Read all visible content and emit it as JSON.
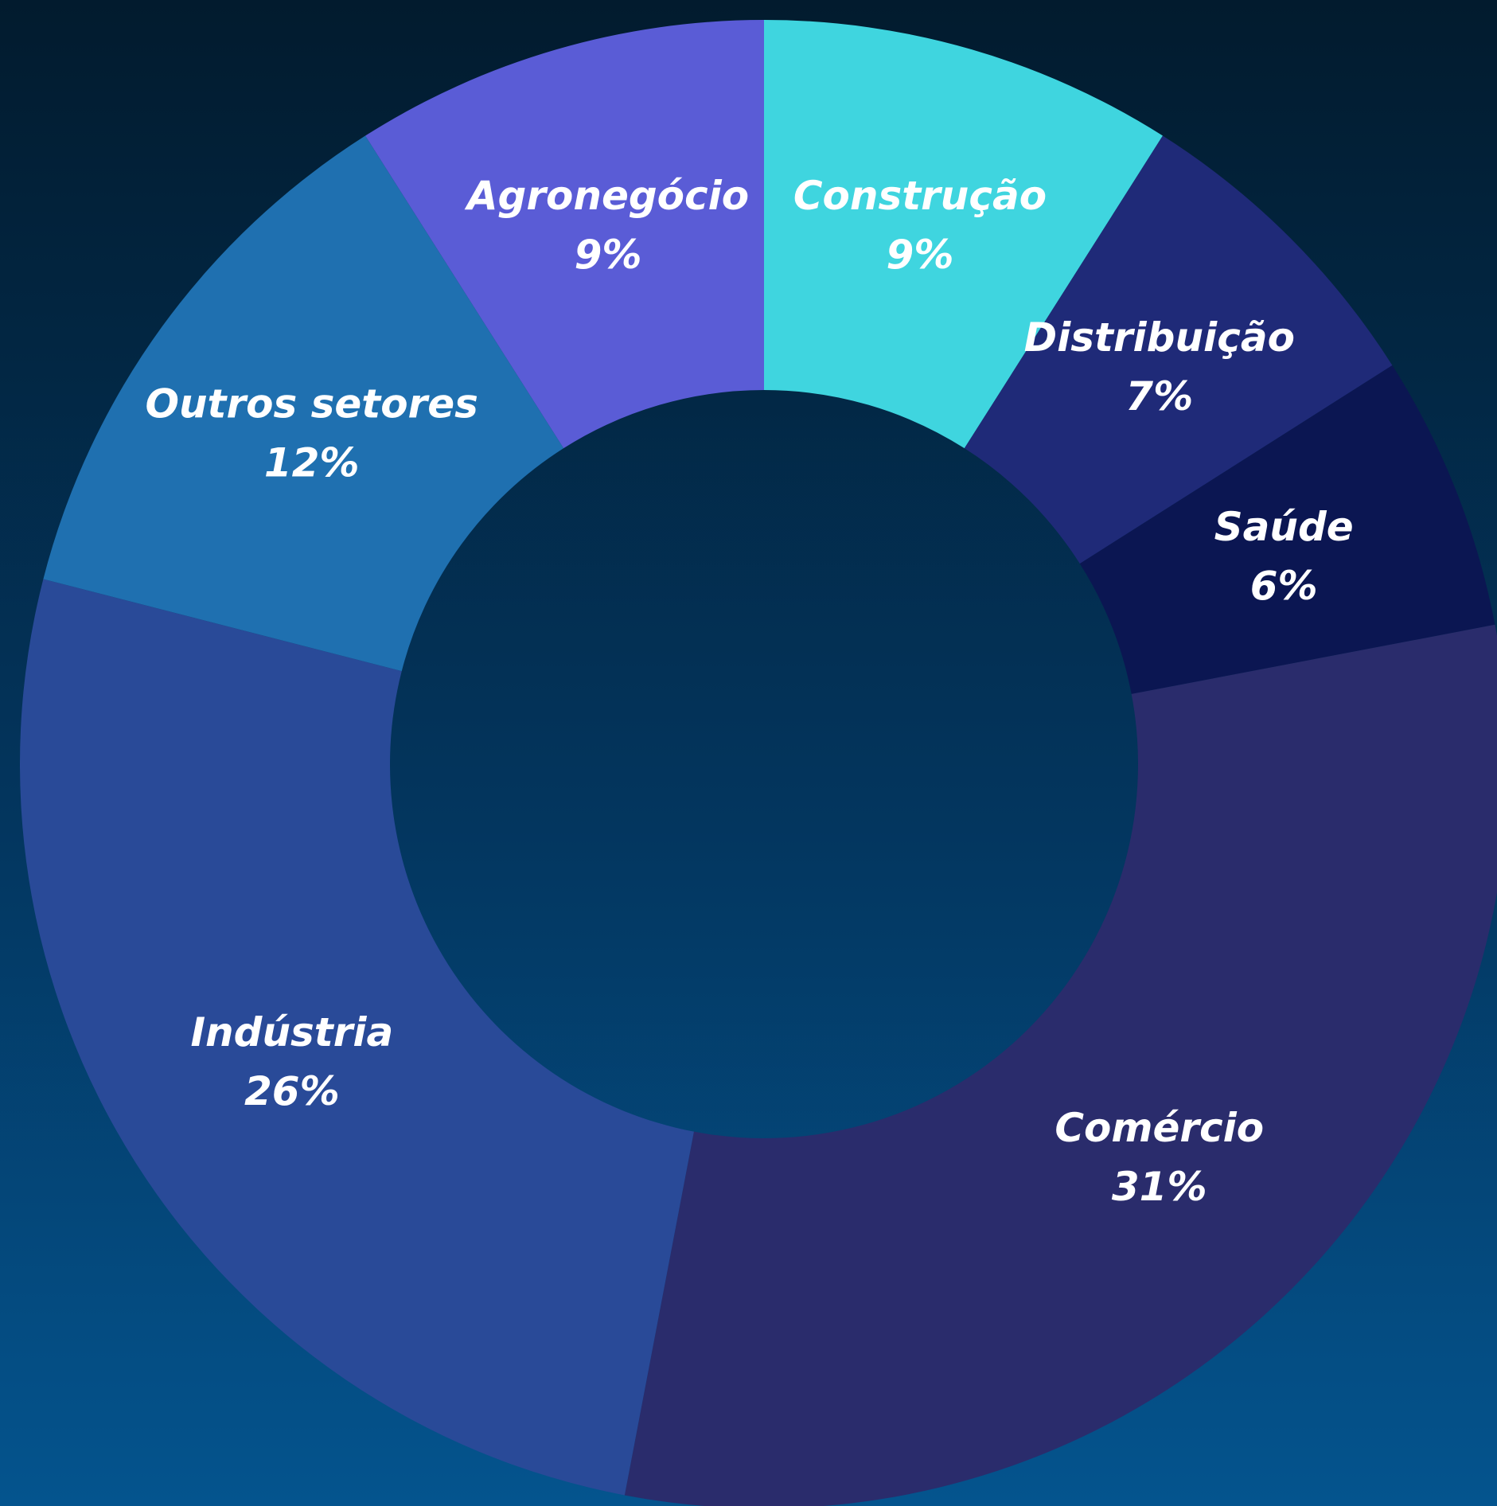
{
  "chart_data": {
    "type": "donut",
    "categories": [
      "Construção",
      "Distribuição",
      "Saúde",
      "Comércio",
      "Indústria",
      "Outros setores",
      "Agronegócio"
    ],
    "values": [
      9,
      7,
      6,
      31,
      26,
      12,
      9
    ],
    "value_labels": [
      "9%",
      "7%",
      "6%",
      "31%",
      "26%",
      "12%",
      "9%"
    ],
    "colors": [
      "#3fd5df",
      "#1f2a78",
      "#0b1652",
      "#2a2c6c",
      "#294a98",
      "#1f70b0",
      "#5a5cd6"
    ]
  }
}
